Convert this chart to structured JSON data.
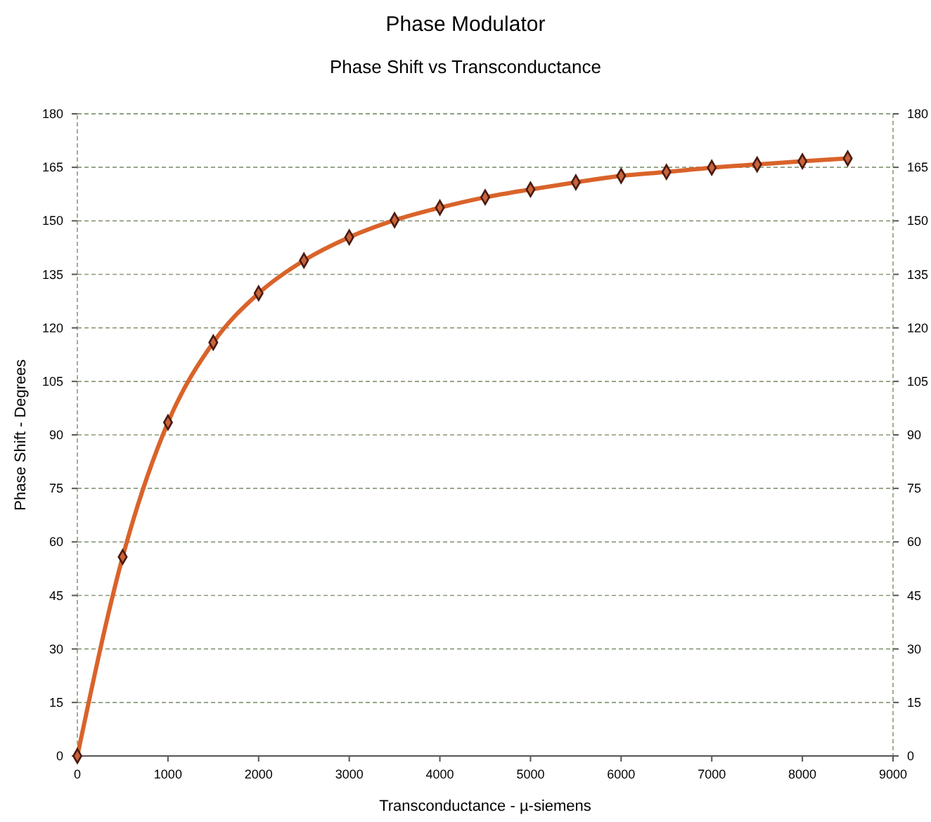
{
  "chart_data": {
    "type": "line",
    "title": "Phase Modulator",
    "subtitle": "Phase Shift vs Transconductance",
    "xlabel": "Transconductance - µ-siemens",
    "ylabel": "Phase Shift - Degrees",
    "x": [
      0,
      500,
      1000,
      1500,
      2000,
      2500,
      3000,
      3500,
      4000,
      4500,
      5000,
      5500,
      6000,
      6500,
      7000,
      7500,
      8000,
      8500
    ],
    "series": [
      {
        "color": "#d9632a",
        "marker": "none",
        "values": [
          0,
          55.8,
          93.5,
          115.9,
          129.7,
          138.9,
          145.4,
          150.2,
          153.7,
          156.6,
          158.8,
          160.8,
          162.6,
          163.7,
          164.9,
          165.8,
          166.7,
          167.5
        ]
      },
      {
        "type": "scatter",
        "color": "#4a1a10",
        "marker": "diamond",
        "values": [
          0,
          55.8,
          93.5,
          115.9,
          129.7,
          138.9,
          145.4,
          150.2,
          153.7,
          156.6,
          158.8,
          160.8,
          162.6,
          163.7,
          164.9,
          165.8,
          166.7,
          167.5
        ]
      }
    ],
    "xlim": [
      0,
      9000
    ],
    "xticks": [
      0,
      1000,
      2000,
      3000,
      4000,
      5000,
      6000,
      7000,
      8000,
      9000
    ],
    "ylim": [
      0,
      180
    ],
    "yticks": [
      0,
      15,
      30,
      45,
      60,
      75,
      90,
      105,
      120,
      135,
      150,
      165,
      180
    ],
    "y2lim": [
      0,
      180
    ],
    "y2ticks": [
      0,
      15,
      30,
      45,
      60,
      75,
      90,
      105,
      120,
      135,
      150,
      165,
      180
    ],
    "grid": "y"
  }
}
